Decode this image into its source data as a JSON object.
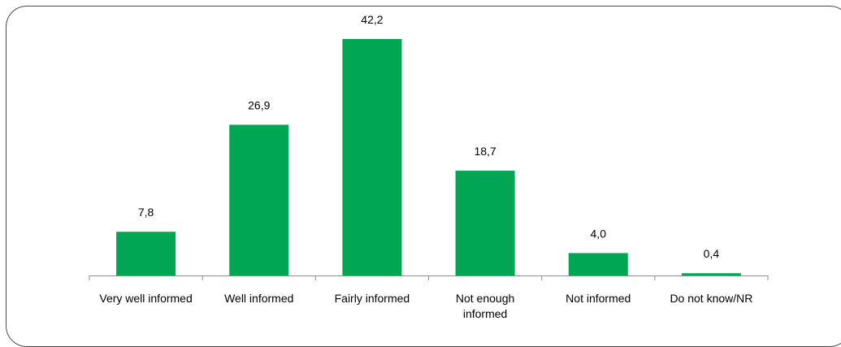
{
  "colors": {
    "bar": "#00a651",
    "axis": "#8c8c8c",
    "frame": "#4a4a4a"
  },
  "chart_data": {
    "type": "bar",
    "categories": [
      [
        "Very well informed"
      ],
      [
        "Well informed"
      ],
      [
        "Fairly informed"
      ],
      [
        "Not enough",
        "informed"
      ],
      [
        "Not informed"
      ],
      [
        "Do not know/NR"
      ]
    ],
    "values": [
      7.8,
      26.9,
      42.2,
      18.7,
      4.0,
      0.4
    ],
    "data_labels": [
      "7,8",
      "26,9",
      "42,2",
      "18,7",
      "4,0",
      "0,4"
    ],
    "ylim": [
      0,
      42.2
    ],
    "grid": false,
    "legend": "none"
  }
}
